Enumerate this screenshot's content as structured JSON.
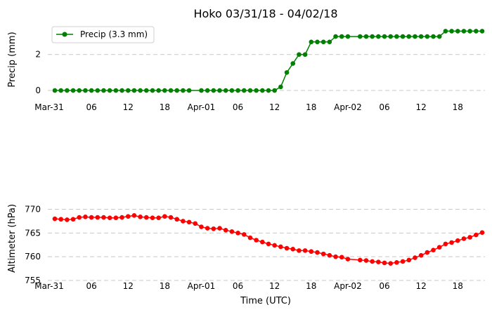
{
  "chart_data": [
    {
      "type": "line",
      "title": "Hoko 03/31/18 - 04/02/18",
      "ylabel": "Precip (mm)",
      "xlabel": "",
      "x_ticks": [
        {
          "t": 0,
          "label": "Mar-31"
        },
        {
          "t": 6,
          "label": "06"
        },
        {
          "t": 12,
          "label": "12"
        },
        {
          "t": 18,
          "label": "18"
        },
        {
          "t": 24,
          "label": "Apr-01"
        },
        {
          "t": 30,
          "label": "06"
        },
        {
          "t": 36,
          "label": "12"
        },
        {
          "t": 42,
          "label": "18"
        },
        {
          "t": 48,
          "label": "Apr-02"
        },
        {
          "t": 54,
          "label": "06"
        },
        {
          "t": 60,
          "label": "12"
        },
        {
          "t": 66,
          "label": "18"
        }
      ],
      "xlim": [
        0,
        70
      ],
      "ylim": [
        -0.35,
        3.55
      ],
      "y_ticks": [
        0,
        2
      ],
      "grid": "horizontal-dashed",
      "legend": {
        "placement": "top-left",
        "label": "Precip (3.3 mm)"
      },
      "color": "#008000",
      "series": [
        {
          "name": "Precip (3.3 mm)",
          "x": [
            0,
            1,
            2,
            3,
            4,
            5,
            6,
            7,
            8,
            9,
            10,
            11,
            12,
            13,
            14,
            15,
            16,
            17,
            18,
            19,
            20,
            21,
            22,
            24,
            25,
            26,
            27,
            28,
            29,
            30,
            31,
            32,
            33,
            34,
            35,
            36,
            37,
            38,
            39,
            40,
            41,
            42,
            43,
            44,
            45,
            46,
            47,
            48,
            50,
            51,
            52,
            53,
            54,
            55,
            56,
            57,
            58,
            59,
            60,
            61,
            62,
            63,
            64,
            65,
            66,
            67,
            68,
            69,
            70
          ],
          "values": [
            0,
            0,
            0,
            0,
            0,
            0,
            0,
            0,
            0,
            0,
            0,
            0,
            0,
            0,
            0,
            0,
            0,
            0,
            0,
            0,
            0,
            0,
            0,
            0,
            0,
            0,
            0,
            0,
            0,
            0,
            0,
            0,
            0,
            0,
            0,
            0,
            0.2,
            1.0,
            1.5,
            2.0,
            2.0,
            2.7,
            2.7,
            2.7,
            2.7,
            3.0,
            3.0,
            3.0,
            3.0,
            3.0,
            3.0,
            3.0,
            3.0,
            3.0,
            3.0,
            3.0,
            3.0,
            3.0,
            3.0,
            3.0,
            3.0,
            3.0,
            3.3,
            3.3,
            3.3,
            3.3,
            3.3,
            3.3,
            3.3
          ]
        }
      ]
    },
    {
      "type": "line",
      "title": "",
      "ylabel": "Altimeter (hPa)",
      "xlabel": "Time (UTC)",
      "x_ticks": [
        {
          "t": 0,
          "label": "Mar-31"
        },
        {
          "t": 6,
          "label": "06"
        },
        {
          "t": 12,
          "label": "12"
        },
        {
          "t": 18,
          "label": "18"
        },
        {
          "t": 24,
          "label": "Apr-01"
        },
        {
          "t": 30,
          "label": "06"
        },
        {
          "t": 36,
          "label": "12"
        },
        {
          "t": 42,
          "label": "18"
        },
        {
          "t": 48,
          "label": "Apr-02"
        },
        {
          "t": 54,
          "label": "06"
        },
        {
          "t": 60,
          "label": "12"
        },
        {
          "t": 66,
          "label": "18"
        }
      ],
      "xlim": [
        0,
        70
      ],
      "ylim": [
        755,
        772
      ],
      "y_ticks": [
        755,
        760,
        765,
        770
      ],
      "grid": "horizontal-dashed",
      "color": "#ff0000",
      "series": [
        {
          "name": "",
          "x": [
            0,
            1,
            2,
            3,
            4,
            5,
            6,
            7,
            8,
            9,
            10,
            11,
            12,
            13,
            14,
            15,
            16,
            17,
            18,
            19,
            20,
            21,
            22,
            23,
            24,
            25,
            26,
            27,
            28,
            29,
            30,
            31,
            32,
            33,
            34,
            35,
            36,
            37,
            38,
            39,
            40,
            41,
            42,
            43,
            44,
            45,
            46,
            47,
            48,
            50,
            51,
            52,
            53,
            54,
            55,
            56,
            57,
            58,
            59,
            60,
            61,
            62,
            63,
            64,
            65,
            66,
            67,
            68,
            69,
            70
          ],
          "values": [
            768.0,
            767.9,
            767.8,
            767.9,
            768.3,
            768.4,
            768.3,
            768.3,
            768.3,
            768.2,
            768.2,
            768.3,
            768.5,
            768.7,
            768.4,
            768.3,
            768.2,
            768.2,
            768.5,
            768.3,
            767.9,
            767.5,
            767.3,
            767.0,
            766.3,
            766.0,
            765.9,
            766.0,
            765.6,
            765.3,
            765.0,
            764.7,
            764.0,
            763.5,
            763.1,
            762.7,
            762.4,
            762.1,
            761.8,
            761.6,
            761.3,
            761.3,
            761.1,
            760.9,
            760.6,
            760.3,
            760.0,
            759.9,
            759.5,
            759.3,
            759.2,
            759.0,
            758.9,
            758.7,
            758.6,
            758.8,
            759.0,
            759.3,
            759.8,
            760.3,
            760.9,
            761.4,
            762.0,
            762.7,
            763.0,
            763.4,
            763.8,
            764.1,
            764.6,
            765.1
          ]
        }
      ]
    }
  ]
}
